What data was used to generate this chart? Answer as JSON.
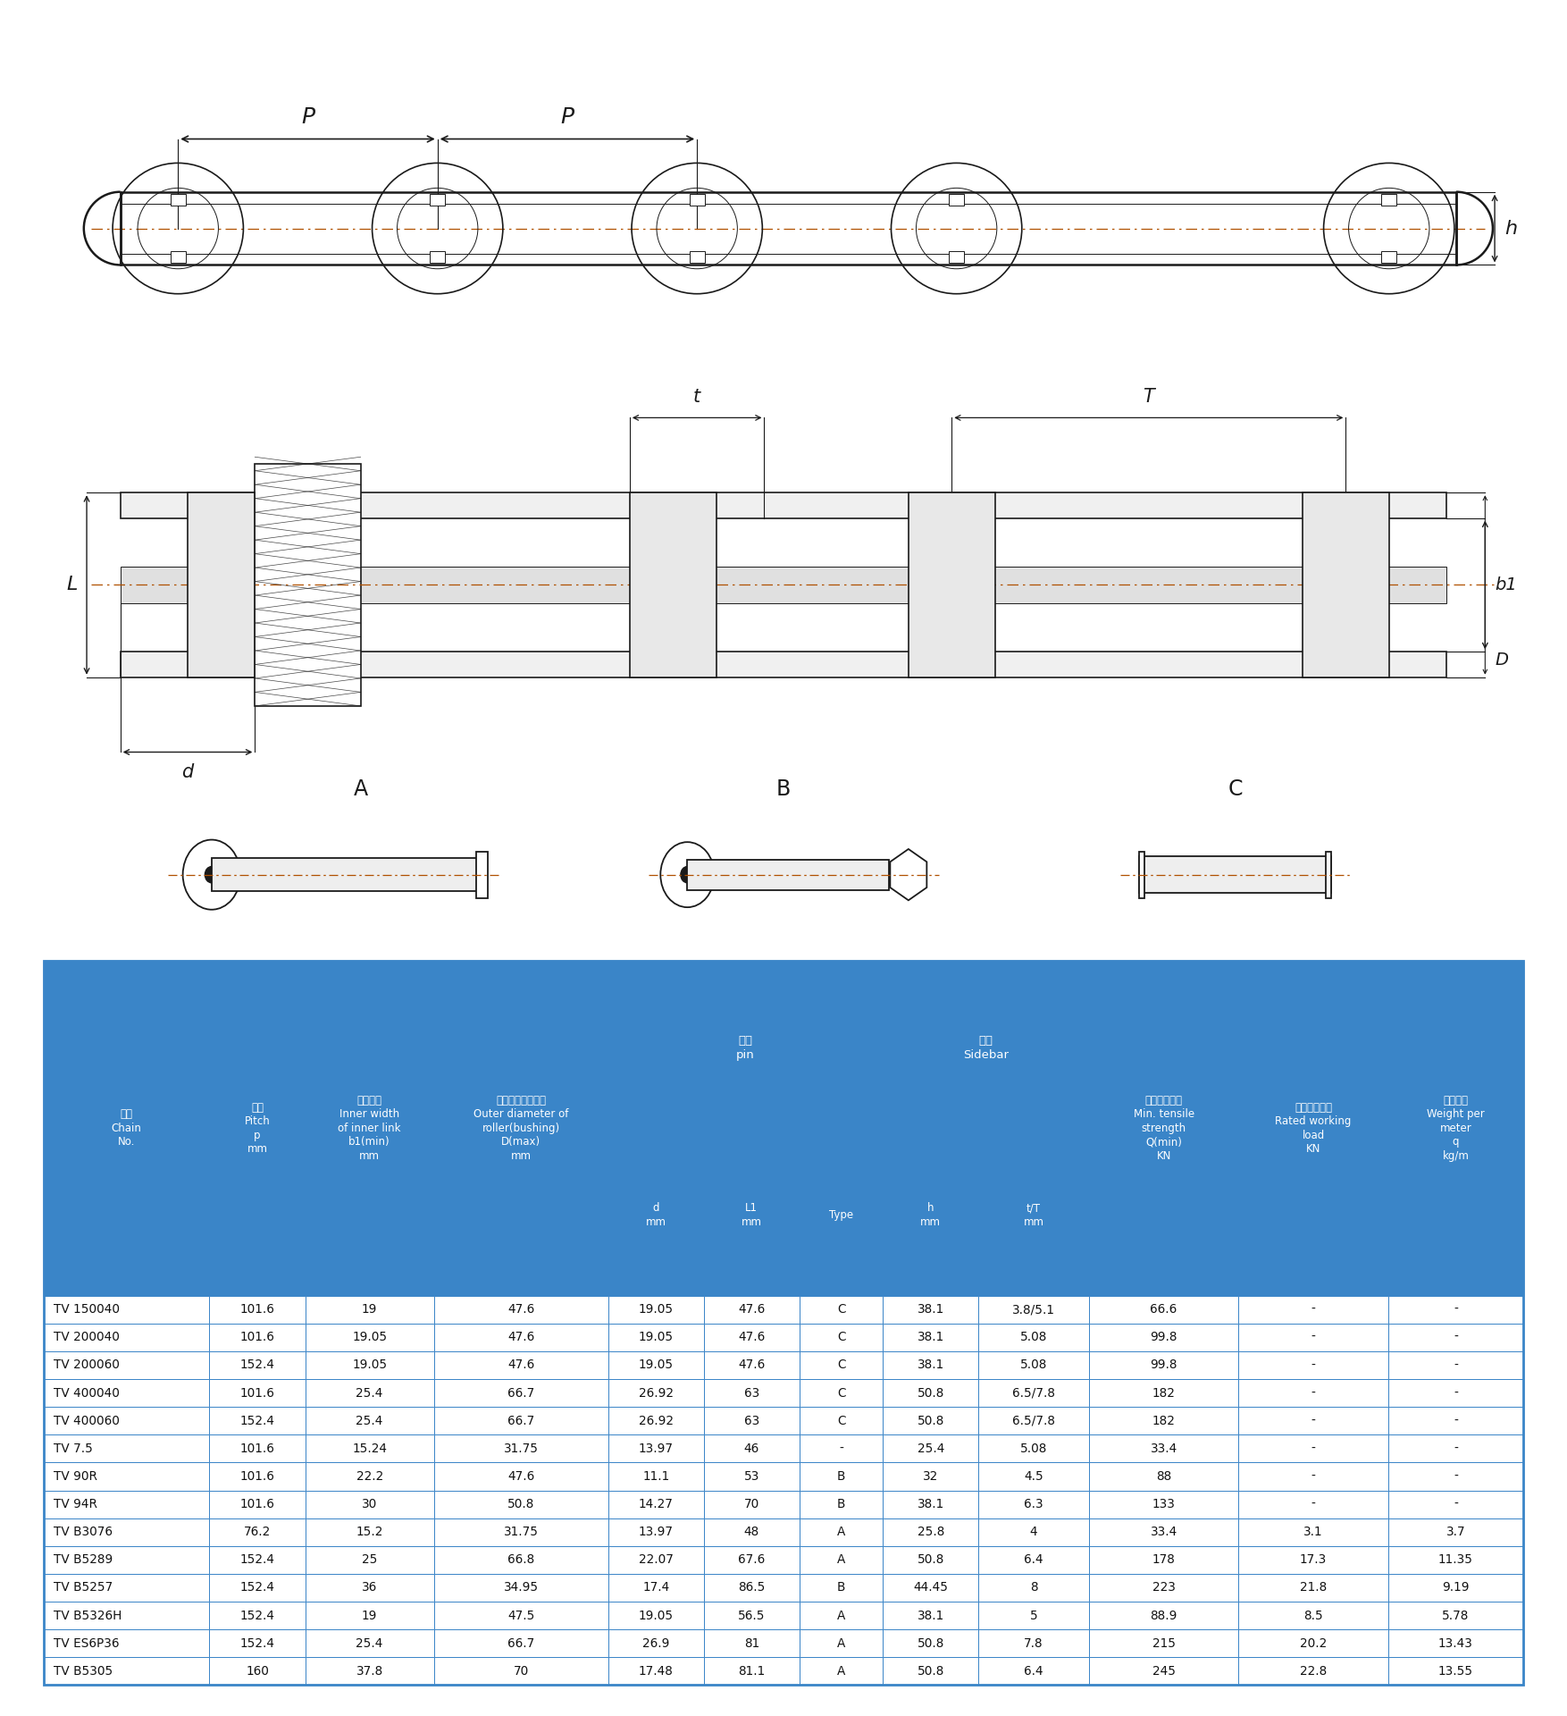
{
  "bg_color": "#ffffff",
  "header_bg": "#3a85c8",
  "header_text_color": "#ffffff",
  "border_color": "#3a85c8",
  "lc": "#1a1a1a",
  "rows": [
    [
      "TV 150040",
      "101.6",
      "19",
      "47.6",
      "19.05",
      "47.6",
      "C",
      "38.1",
      "3.8/5.1",
      "66.6",
      "-",
      "-"
    ],
    [
      "TV 200040",
      "101.6",
      "19.05",
      "47.6",
      "19.05",
      "47.6",
      "C",
      "38.1",
      "5.08",
      "99.8",
      "-",
      "-"
    ],
    [
      "TV 200060",
      "152.4",
      "19.05",
      "47.6",
      "19.05",
      "47.6",
      "C",
      "38.1",
      "5.08",
      "99.8",
      "-",
      "-"
    ],
    [
      "TV 400040",
      "101.6",
      "25.4",
      "66.7",
      "26.92",
      "63",
      "C",
      "50.8",
      "6.5/7.8",
      "182",
      "-",
      "-"
    ],
    [
      "TV 400060",
      "152.4",
      "25.4",
      "66.7",
      "26.92",
      "63",
      "C",
      "50.8",
      "6.5/7.8",
      "182",
      "-",
      "-"
    ],
    [
      "TV 7.5",
      "101.6",
      "15.24",
      "31.75",
      "13.97",
      "46",
      "-",
      "25.4",
      "5.08",
      "33.4",
      "-",
      "-"
    ],
    [
      "TV 90R",
      "101.6",
      "22.2",
      "47.6",
      "11.1",
      "53",
      "B",
      "32",
      "4.5",
      "88",
      "-",
      "-"
    ],
    [
      "TV 94R",
      "101.6",
      "30",
      "50.8",
      "14.27",
      "70",
      "B",
      "38.1",
      "6.3",
      "133",
      "-",
      "-"
    ],
    [
      "TV B3076",
      "76.2",
      "15.2",
      "31.75",
      "13.97",
      "48",
      "A",
      "25.8",
      "4",
      "33.4",
      "3.1",
      "3.7"
    ],
    [
      "TV B5289",
      "152.4",
      "25",
      "66.8",
      "22.07",
      "67.6",
      "A",
      "50.8",
      "6.4",
      "178",
      "17.3",
      "11.35"
    ],
    [
      "TV B5257",
      "152.4",
      "36",
      "34.95",
      "17.4",
      "86.5",
      "B",
      "44.45",
      "8",
      "223",
      "21.8",
      "9.19"
    ],
    [
      "TV B5326H",
      "152.4",
      "19",
      "47.5",
      "19.05",
      "56.5",
      "A",
      "38.1",
      "5",
      "88.9",
      "8.5",
      "5.78"
    ],
    [
      "TV ES6P36",
      "152.4",
      "25.4",
      "66.7",
      "26.9",
      "81",
      "A",
      "50.8",
      "7.8",
      "215",
      "20.2",
      "13.43"
    ],
    [
      "TV B5305",
      "160",
      "37.8",
      "70",
      "17.48",
      "81.1",
      "A",
      "50.8",
      "6.4",
      "245",
      "22.8",
      "13.55"
    ]
  ],
  "col_widths": [
    1.35,
    0.78,
    1.05,
    1.42,
    0.78,
    0.78,
    0.68,
    0.78,
    0.9,
    1.22,
    1.22,
    1.1
  ],
  "h1_labels": {
    "0": "链号\nChain\nNo.",
    "1": "节距\nPitch\np\nmm",
    "2": "内节内宽\nInner width\nof inner link\nb1(min)\nmm",
    "3": "滚子（套筒）外径\nOuter diameter of\nroller(bushing)\nD(max)\nmm",
    "9": "最小抗拉强度\nMin. tensile\nstrength\nQ(min)\nKN",
    "10": "许用工作载荷\nRated working\nload\nKN",
    "11": "每米重量\nWeight per\nmeter\nq\nkg/m"
  },
  "pin_label": "销轴\npin",
  "sidebar_label": "链板\nSidebar",
  "h2_labels": {
    "4": "d\nmm",
    "5": "L1\nmm",
    "6": "Type",
    "7": "h\nmm",
    "8": "t/T\nmm"
  }
}
